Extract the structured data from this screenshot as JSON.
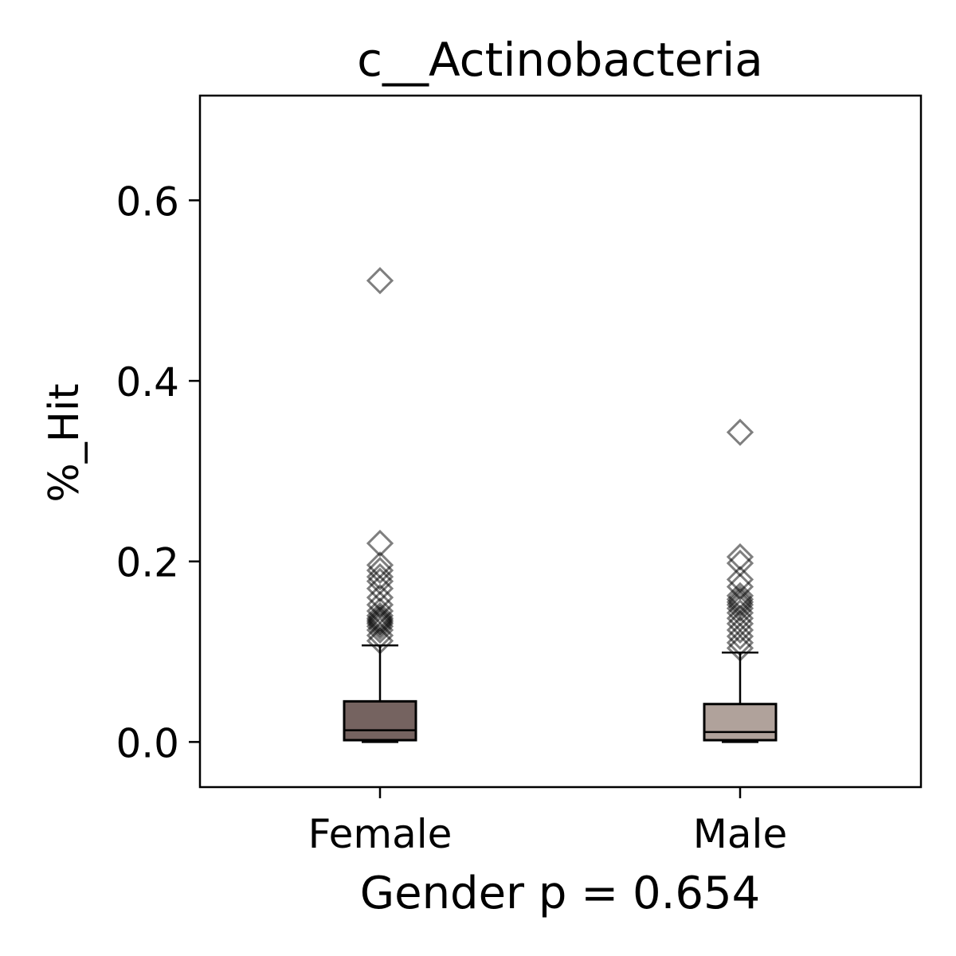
{
  "chart_data": {
    "type": "box",
    "title": "c__Actinobacteria",
    "xlabel": "Gender p = 0.654",
    "ylabel": "%_Hit",
    "ylim": [
      -0.05,
      0.716
    ],
    "yticks": [
      0.0,
      0.2,
      0.4,
      0.6
    ],
    "ytick_labels": [
      "0.0",
      "0.2",
      "0.4",
      "0.6"
    ],
    "categories": [
      "Female",
      "Male"
    ],
    "grid": false,
    "legend": "none",
    "boxes": [
      {
        "name": "Female",
        "color": "#756360",
        "min": 0.0,
        "q1": 0.002,
        "median": 0.013,
        "q3": 0.045,
        "whisker_high": 0.107,
        "outliers": [
          0.112,
          0.118,
          0.124,
          0.128,
          0.131,
          0.133,
          0.135,
          0.137,
          0.14,
          0.145,
          0.152,
          0.16,
          0.17,
          0.178,
          0.183,
          0.19,
          0.196,
          0.22,
          0.511
        ]
      },
      {
        "name": "Male",
        "color": "#b0a29b",
        "min": 0.0,
        "q1": 0.002,
        "median": 0.011,
        "q3": 0.042,
        "whisker_high": 0.099,
        "outliers": [
          0.104,
          0.11,
          0.117,
          0.124,
          0.131,
          0.137,
          0.143,
          0.148,
          0.152,
          0.155,
          0.158,
          0.162,
          0.172,
          0.18,
          0.198,
          0.205,
          0.343
        ]
      }
    ],
    "outlier_marker": "diamond",
    "outlier_color": "#808080"
  }
}
